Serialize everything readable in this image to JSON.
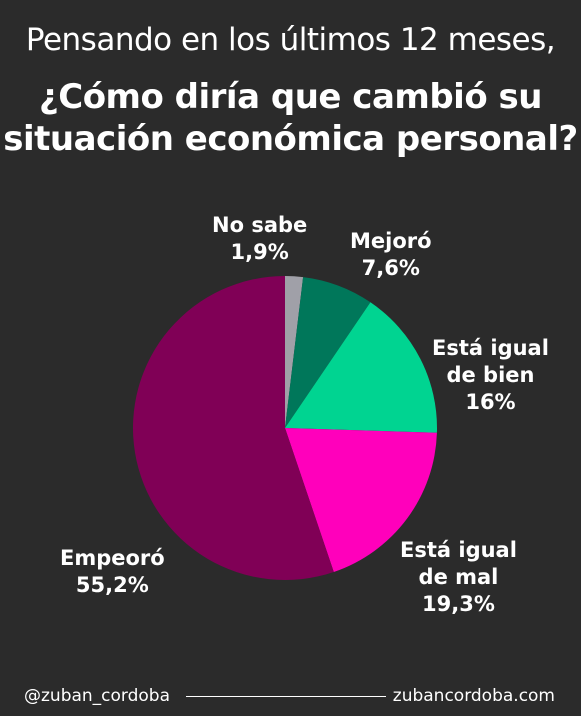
{
  "header": {
    "subtitle": "Pensando en los últimos 12 meses,",
    "title_line1": "¿Cómo diría que cambió su",
    "title_line2": "situación económica personal?"
  },
  "chart_data": {
    "type": "pie",
    "slices": [
      {
        "label": "No sabe",
        "value": 1.9,
        "value_text": "1,9%",
        "color": "#a0a0a8"
      },
      {
        "label": "Mejoró",
        "value": 7.6,
        "value_text": "7,6%",
        "color": "#00775a"
      },
      {
        "label": "Está igual de bien",
        "label_lines": [
          "Está igual",
          "de bien"
        ],
        "value": 16,
        "value_text": "16%",
        "color": "#00d491"
      },
      {
        "label": "Está igual de mal",
        "label_lines": [
          "Está igual",
          "de mal"
        ],
        "value": 19.3,
        "value_text": "19,3%",
        "color": "#ff00bb"
      },
      {
        "label": "Empeoró",
        "value": 55.2,
        "value_text": "55,2%",
        "color": "#800056"
      }
    ]
  },
  "footer": {
    "handle": "@zuban_cordoba",
    "website": "zubancordoba.com"
  }
}
